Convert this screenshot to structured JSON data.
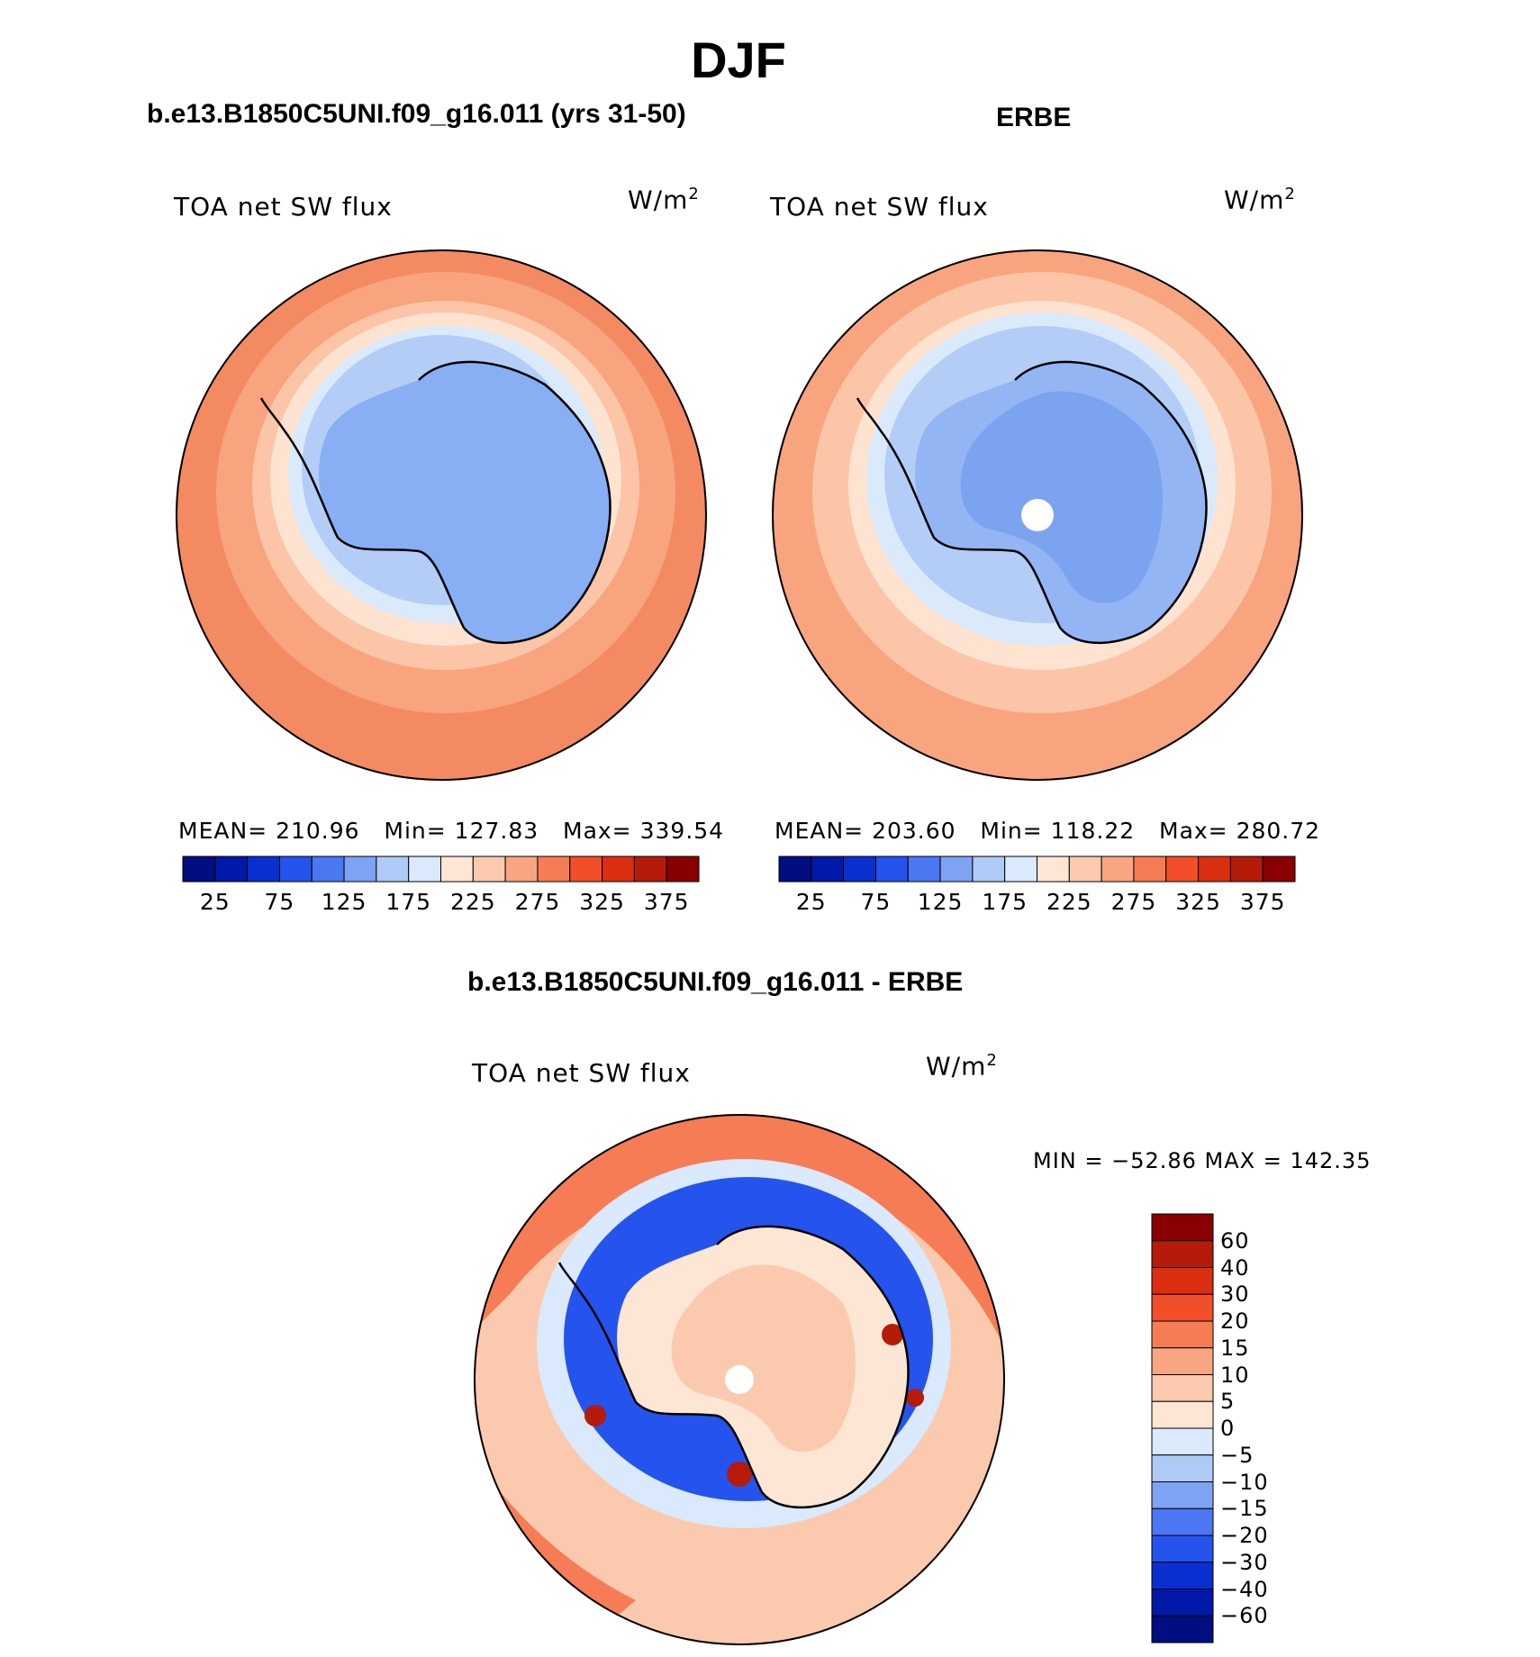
{
  "title": "DJF",
  "panels": [
    {
      "title": "b.e13.B1850C5UNI.f09_g16.011 (yrs 31-50)",
      "field_label": "TOA net SW flux",
      "units_base": "W/m",
      "units_exp": "2",
      "stats": {
        "mean_label": "MEAN=",
        "mean": "210.96",
        "min_label": "Min=",
        "min": "127.83",
        "max_label": "Max=",
        "max": "339.54"
      },
      "map_colors": {
        "outer": "#f48a62",
        "ring2": "#f8a47f",
        "ring3": "#fcc5a7",
        "ring4": "#fde3d0",
        "ring5": "#dbeafb",
        "ring6": "#b3cdf7",
        "ice": "#88aef3"
      }
    },
    {
      "title": "ERBE",
      "field_label": "TOA net SW flux",
      "units_base": "W/m",
      "units_exp": "2",
      "stats": {
        "mean_label": "MEAN=",
        "mean": "203.60",
        "min_label": "Min=",
        "min": "118.22",
        "max_label": "Max=",
        "max": "280.72"
      },
      "map_colors": {
        "outer": "#f8a47f",
        "ring2": "#fcc5a7",
        "ring3": "#fde3d0",
        "ring4": "#dbeafb",
        "ring5": "#b3cdf7",
        "ring6": "#94b5f4",
        "ice": "#7ca3f0"
      }
    }
  ],
  "abs_colorbar": {
    "ticks": [
      "25",
      "75",
      "125",
      "175",
      "225",
      "275",
      "325",
      "375"
    ],
    "colors": [
      "#000e80",
      "#0019a8",
      "#0a2fd0",
      "#2553ee",
      "#4b77f2",
      "#7ea2f4",
      "#aecaf7",
      "#dae9fb",
      "#fde6d4",
      "#fbc9ae",
      "#f8a682",
      "#f67c55",
      "#f24e2a",
      "#db2e10",
      "#b51b08",
      "#8a0000"
    ]
  },
  "diff_panel": {
    "title": "b.e13.B1850C5UNI.f09_g16.011 - ERBE",
    "field_label": "TOA net SW flux",
    "units_base": "W/m",
    "units_exp": "2",
    "minmax": "MIN = −52.86 MAX = 142.35",
    "colorbar_ticks": [
      "60",
      "40",
      "30",
      "20",
      "15",
      "10",
      "5",
      "0",
      "−5",
      "−10",
      "−15",
      "−20",
      "−30",
      "−40",
      "−60"
    ],
    "colorbar_colors": [
      "#8a0000",
      "#b51b08",
      "#db2e10",
      "#f24e2a",
      "#f67c55",
      "#f8a682",
      "#fbc9ae",
      "#fde6d4",
      "#dae9fb",
      "#aecaf7",
      "#7ea2f4",
      "#4b77f2",
      "#2553ee",
      "#0a2fd0",
      "#0019a8",
      "#000e80"
    ],
    "map_colors": {
      "outer": "#fbc9ae",
      "ring2": "#f67c55",
      "ring3": "#dae9fb",
      "ring4": "#2553ee",
      "ring5": "#fde6d4",
      "ice": "#fbc9ae",
      "hot": "#b51b08"
    }
  }
}
